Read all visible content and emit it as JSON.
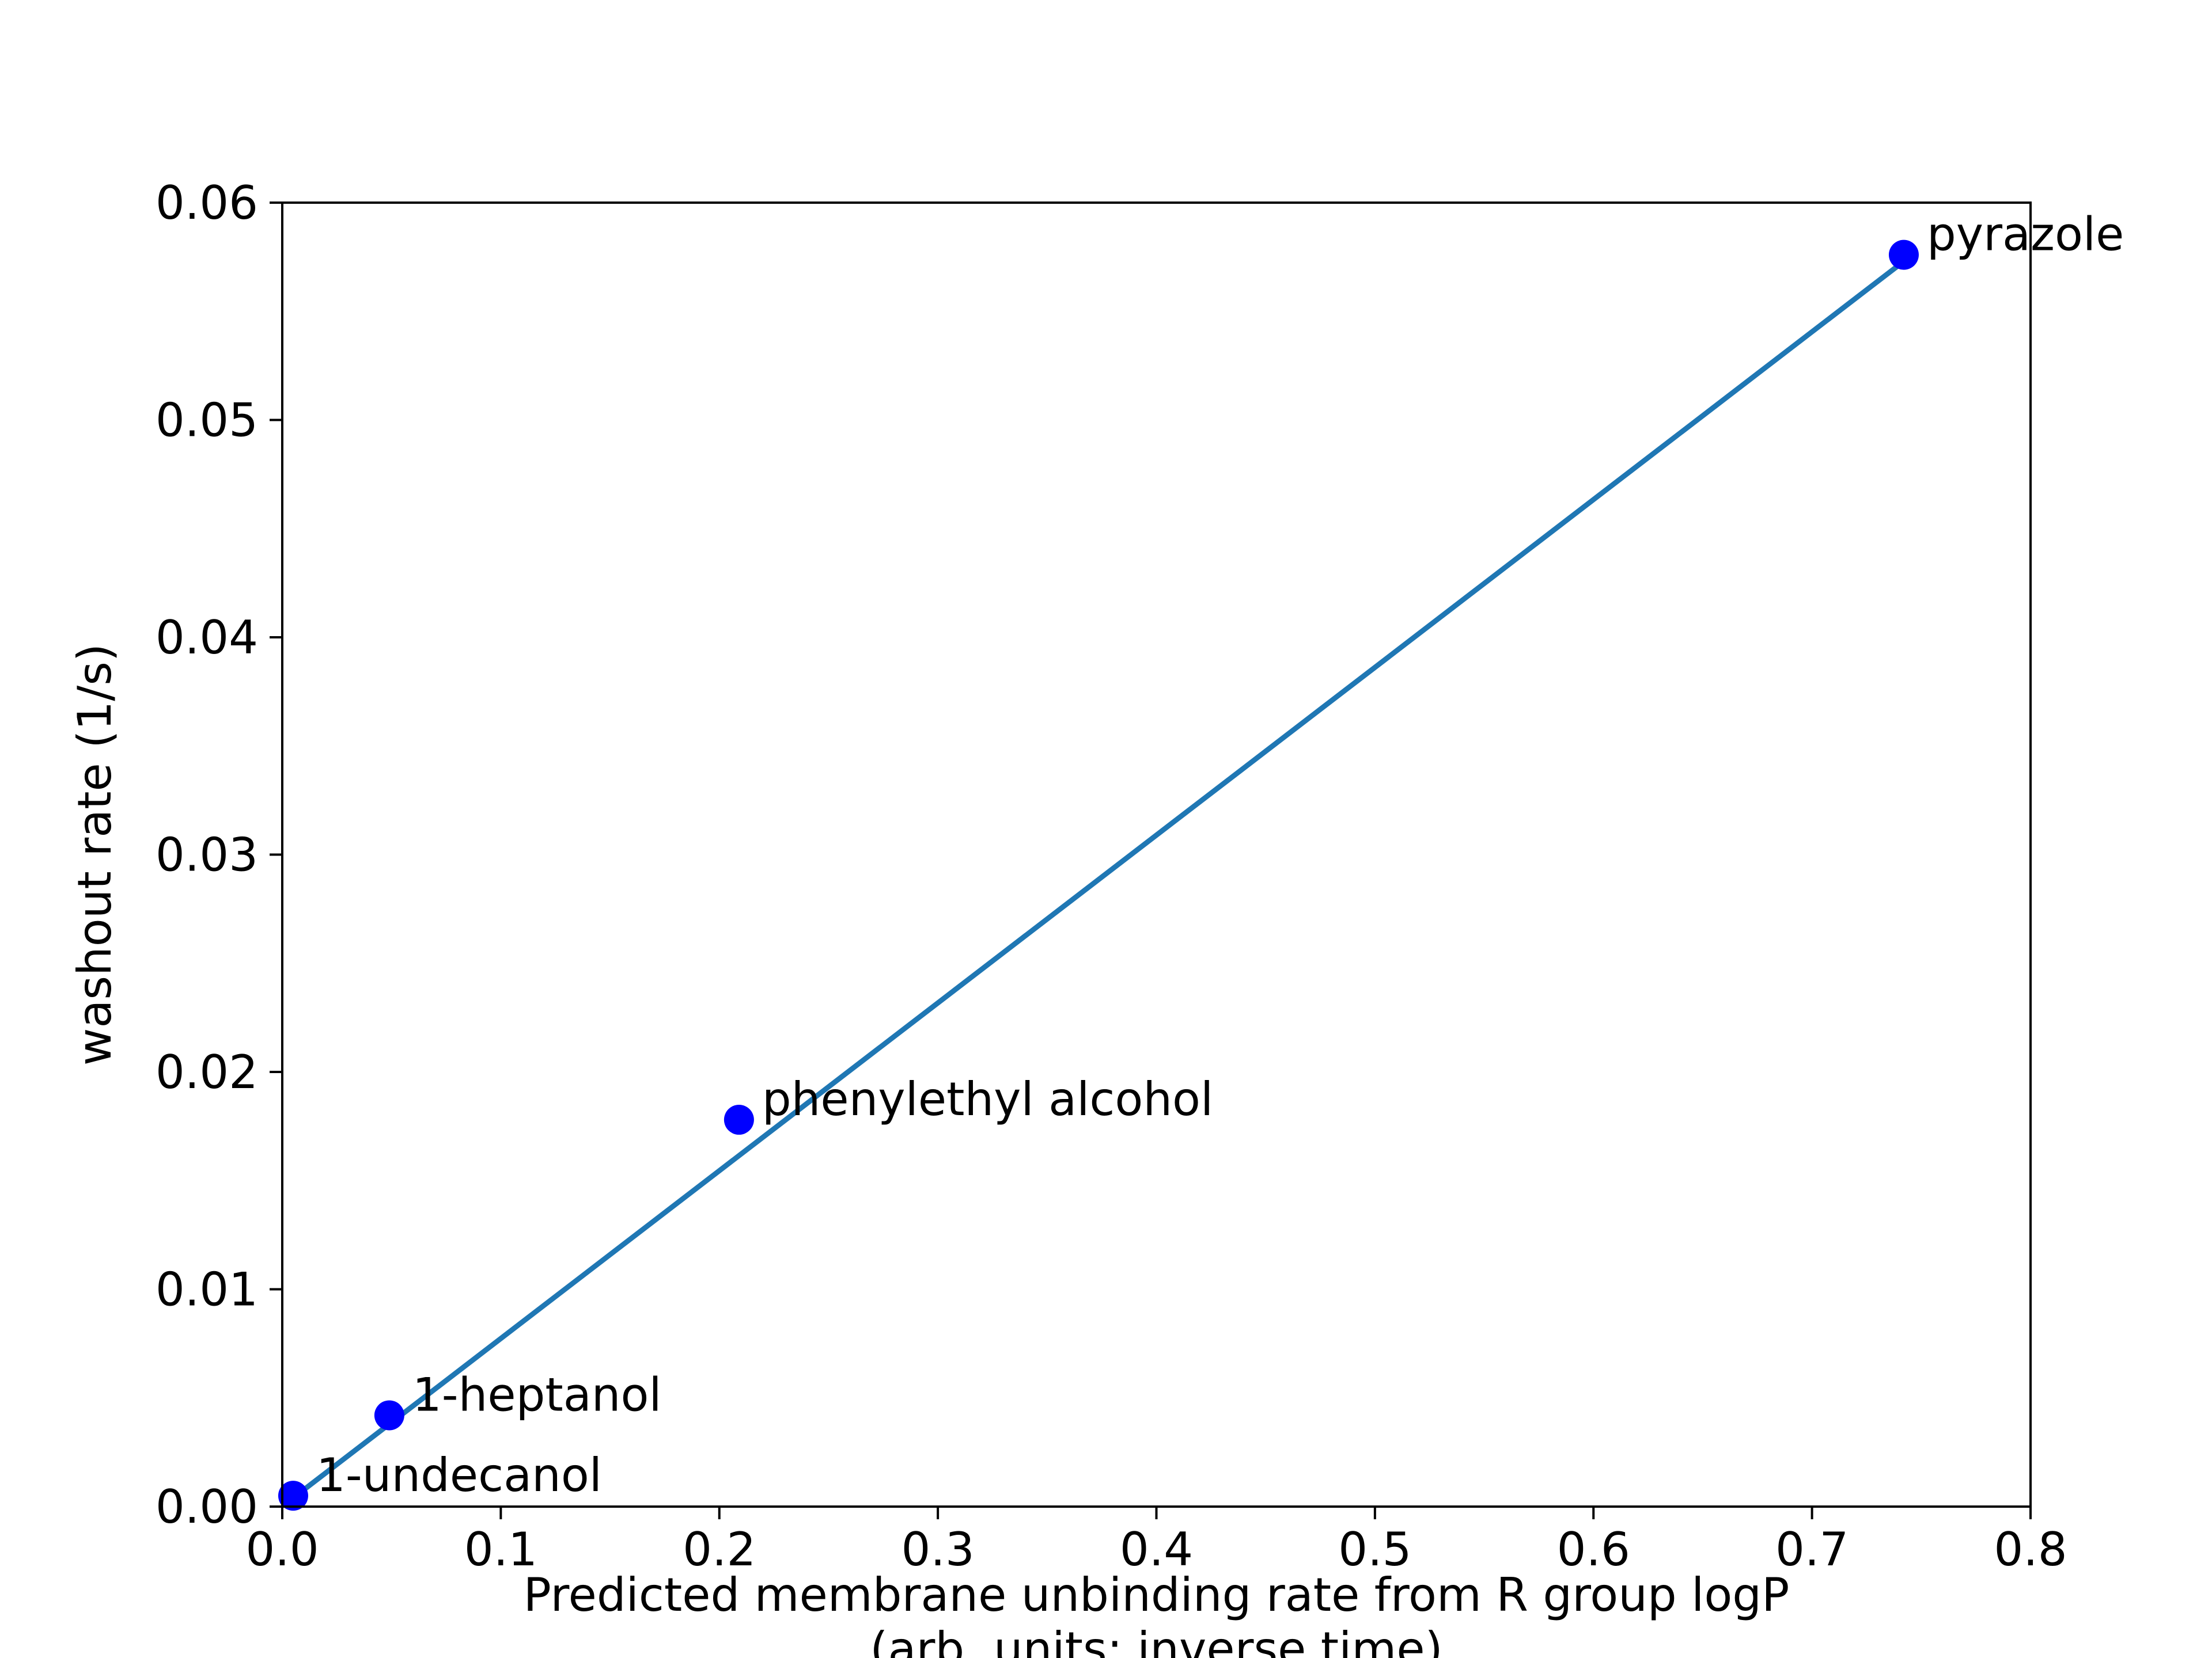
{
  "chart_data": {
    "type": "scatter",
    "title": "",
    "xlabel_lines": [
      "Predicted membrane unbinding rate from R group logP",
      "(arb. units; inverse time)"
    ],
    "ylabel": "washout rate (1/s)",
    "xlim": [
      0.0,
      0.8
    ],
    "ylim": [
      0.0,
      0.06
    ],
    "x_ticks": [
      0.0,
      0.1,
      0.2,
      0.3,
      0.4,
      0.5,
      0.6,
      0.7,
      0.8
    ],
    "x_tick_labels": [
      "0.0",
      "0.1",
      "0.2",
      "0.3",
      "0.4",
      "0.5",
      "0.6",
      "0.7",
      "0.8"
    ],
    "y_ticks": [
      0.0,
      0.01,
      0.02,
      0.03,
      0.04,
      0.05,
      0.06
    ],
    "y_tick_labels": [
      "0.00",
      "0.01",
      "0.02",
      "0.03",
      "0.04",
      "0.05",
      "0.06"
    ],
    "grid": false,
    "legend": "none",
    "points": [
      {
        "label": "1-undecanol",
        "x": 0.005,
        "y": 0.0005
      },
      {
        "label": "1-heptanol",
        "x": 0.049,
        "y": 0.0042
      },
      {
        "label": "phenylethyl alcohol",
        "x": 0.209,
        "y": 0.0178
      },
      {
        "label": "pyrazole",
        "x": 0.742,
        "y": 0.0576
      }
    ],
    "fit_line": {
      "x": [
        0.005,
        0.742
      ],
      "y": [
        0.0004,
        0.0573
      ]
    },
    "colors": {
      "points": "#0000ff",
      "fit_line": "#1f77b4",
      "axes": "#000000"
    }
  }
}
